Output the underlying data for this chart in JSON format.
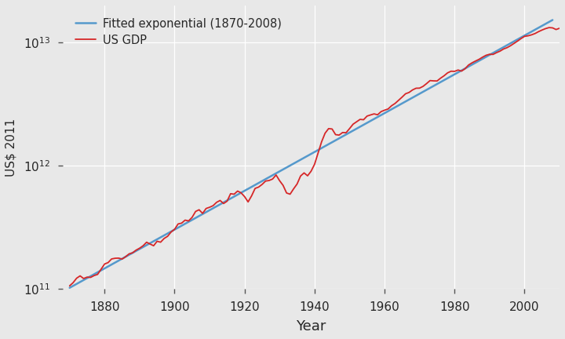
{
  "title": "",
  "xlabel": "Year",
  "ylabel": "US$ 2011",
  "gdp_color": "#d62728",
  "fit_color": "#5599cc",
  "background_color": "#e8e8e8",
  "plot_bg_color": "#e8e8e8",
  "outer_bg_color": "#e8e8e8",
  "grid_color": "#ffffff",
  "legend_labels": [
    "US GDP",
    "Fitted exponential (1870-2008)"
  ],
  "xlim": [
    1868,
    2010
  ],
  "ylim_low": 100000000000.0,
  "ylim_high": 20000000000000.0,
  "fit_start_year": 1870,
  "fit_end_year": 2008,
  "xticks": [
    1880,
    1900,
    1920,
    1940,
    1960,
    1980,
    2000
  ],
  "gdp_data": {
    "1870": 106300000000,
    "1871": 112800000000,
    "1872": 122600000000,
    "1873": 128100000000,
    "1874": 121900000000,
    "1875": 125100000000,
    "1876": 124500000000,
    "1877": 128800000000,
    "1878": 131700000000,
    "1879": 145100000000,
    "1880": 159900000000,
    "1881": 164200000000,
    "1882": 175700000000,
    "1883": 178000000000,
    "1884": 178500000000,
    "1885": 175300000000,
    "1886": 183200000000,
    "1887": 193200000000,
    "1888": 197100000000,
    "1889": 207200000000,
    "1890": 214800000000,
    "1891": 224900000000,
    "1892": 240200000000,
    "1893": 232100000000,
    "1894": 224800000000,
    "1895": 244400000000,
    "1896": 240300000000,
    "1897": 257500000000,
    "1898": 268200000000,
    "1899": 290600000000,
    "1900": 305800000000,
    "1901": 337800000000,
    "1902": 342900000000,
    "1903": 362800000000,
    "1904": 357500000000,
    "1905": 382100000000,
    "1906": 426700000000,
    "1907": 440400000000,
    "1908": 411400000000,
    "1909": 450900000000,
    "1910": 461400000000,
    "1911": 475300000000,
    "1912": 506000000000,
    "1913": 523900000000,
    "1914": 494700000000,
    "1915": 517000000000,
    "1916": 594500000000,
    "1917": 588800000000,
    "1918": 624400000000,
    "1919": 603900000000,
    "1920": 562800000000,
    "1921": 509900000000,
    "1922": 570700000000,
    "1923": 655900000000,
    "1924": 672700000000,
    "1925": 706800000000,
    "1926": 752700000000,
    "1927": 760500000000,
    "1928": 781800000000,
    "1929": 843300000000,
    "1930": 758000000000,
    "1931": 694400000000,
    "1932": 602200000000,
    "1933": 588900000000,
    "1934": 650600000000,
    "1935": 712500000000,
    "1936": 827500000000,
    "1937": 876600000000,
    "1938": 830400000000,
    "1939": 904700000000,
    "1940": 1030800000000,
    "1941": 1267800000000,
    "1942": 1565500000000,
    "1943": 1839800000000,
    "1944": 2004500000000,
    "1945": 1990800000000,
    "1946": 1791300000000,
    "1947": 1775900000000,
    "1948": 1863200000000,
    "1949": 1855900000000,
    "1950": 2006000000000,
    "1951": 2177200000000,
    "1952": 2276800000000,
    "1953": 2381700000000,
    "1954": 2367100000000,
    "1955": 2533500000000,
    "1956": 2588100000000,
    "1957": 2639300000000,
    "1958": 2596600000000,
    "1959": 2752700000000,
    "1960": 2828100000000,
    "1961": 2893000000000,
    "1962": 3072800000000,
    "1963": 3207600000000,
    "1964": 3400900000000,
    "1965": 3609500000000,
    "1966": 3843800000000,
    "1967": 3939100000000,
    "1968": 4130100000000,
    "1969": 4261800000000,
    "1970": 4269900000000,
    "1971": 4413700000000,
    "1972": 4647800000000,
    "1973": 4917000000000,
    "1974": 4889900000000,
    "1975": 4879500000000,
    "1976": 5141300000000,
    "1977": 5377200000000,
    "1978": 5677900000000,
    "1979": 5855400000000,
    "1980": 5839300000000,
    "1981": 5987200000000,
    "1982": 5870900000000,
    "1983": 6135900000000,
    "1984": 6577100000000,
    "1985": 6849300000000,
    "1986": 7086500000000,
    "1987": 7313300000000,
    "1988": 7613400000000,
    "1989": 7885900000000,
    "1990": 8033900000000,
    "1991": 8015100000000,
    "1992": 8287100000000,
    "1993": 8523400000000,
    "1994": 8870900000000,
    "1995": 9093700000000,
    "1996": 9433900000000,
    "1997": 9854300000000,
    "1998": 10283500000000,
    "1999": 10779800000000,
    "2000": 11226000000000,
    "2001": 11347200000000,
    "2002": 11553000000000,
    "2003": 11840700000000,
    "2004": 12263800000000,
    "2005": 12638400000000,
    "2006": 12976200000000,
    "2007": 13228900000000,
    "2008": 13161900000000,
    "2009": 12757900000000,
    "2010": 13063000000000
  }
}
